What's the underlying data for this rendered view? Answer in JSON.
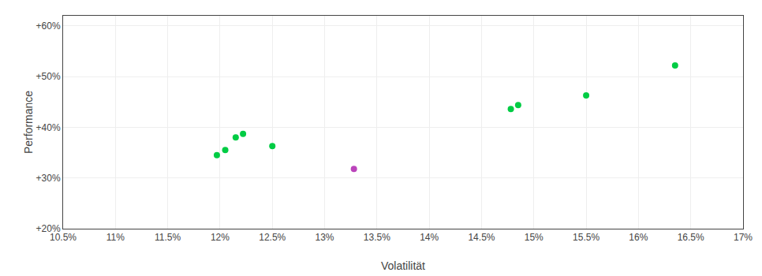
{
  "chart_data": {
    "type": "scatter",
    "xlabel": "Volatilität",
    "ylabel": "Performance",
    "x": [
      11.97,
      12.05,
      12.15,
      12.22,
      12.5,
      13.28,
      14.78,
      14.85,
      15.5,
      16.35
    ],
    "values": [
      34.5,
      35.5,
      38.0,
      38.7,
      36.3,
      31.8,
      43.6,
      44.4,
      46.3,
      52.2
    ],
    "colors": [
      "#00cc44",
      "#00cc44",
      "#00cc44",
      "#00cc44",
      "#00cc44",
      "#bb44bb",
      "#00cc44",
      "#00cc44",
      "#00cc44",
      "#00cc44"
    ],
    "xlim": [
      10.5,
      17.0
    ],
    "ylim": [
      20.0,
      62.0
    ],
    "xticks": [
      {
        "value": 10.5,
        "label": "10.5%"
      },
      {
        "value": 11.0,
        "label": "11%"
      },
      {
        "value": 11.5,
        "label": "11.5%"
      },
      {
        "value": 12.0,
        "label": "12%"
      },
      {
        "value": 12.5,
        "label": "12.5%"
      },
      {
        "value": 13.0,
        "label": "13%"
      },
      {
        "value": 13.5,
        "label": "13.5%"
      },
      {
        "value": 14.0,
        "label": "14%"
      },
      {
        "value": 14.5,
        "label": "14.5%"
      },
      {
        "value": 15.0,
        "label": "15%"
      },
      {
        "value": 15.5,
        "label": "15.5%"
      },
      {
        "value": 16.0,
        "label": "16%"
      },
      {
        "value": 16.5,
        "label": "16.5%"
      },
      {
        "value": 17.0,
        "label": "17%"
      }
    ],
    "yticks": [
      {
        "value": 20,
        "label": "+20%"
      },
      {
        "value": 30,
        "label": "+30%"
      },
      {
        "value": 40,
        "label": "+40%"
      },
      {
        "value": 50,
        "label": "+50%"
      },
      {
        "value": 60,
        "label": "+60%"
      }
    ],
    "grid": true
  }
}
